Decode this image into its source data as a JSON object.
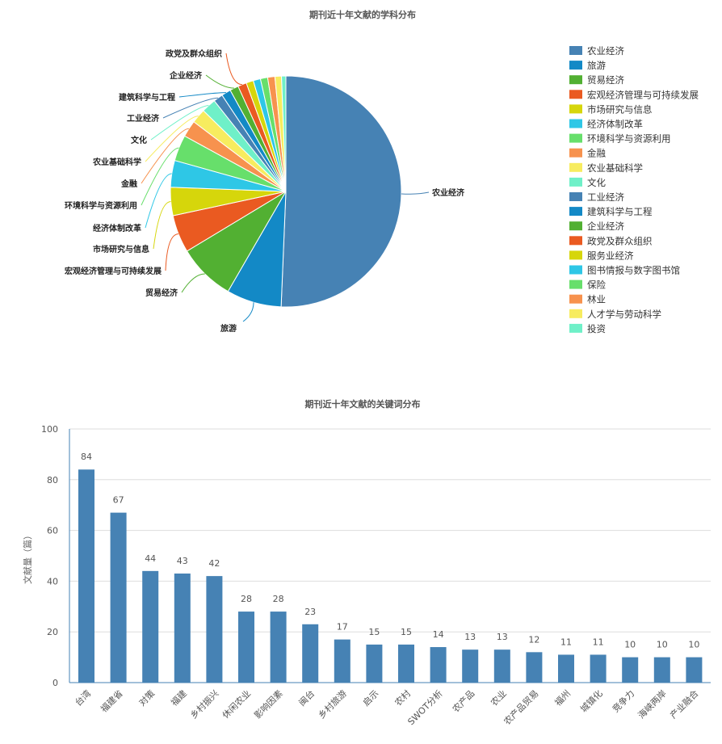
{
  "chart_data": [
    {
      "type": "pie",
      "title": "期刊近十年文献的学科分布",
      "categories": [
        "农业经济",
        "旅游",
        "贸易经济",
        "宏观经济管理与可持续发展",
        "市场研究与信息",
        "经济体制改革",
        "环境科学与资源利用",
        "金融",
        "农业基础科学",
        "文化",
        "工业经济",
        "建筑科学与工程",
        "企业经济",
        "政党及群众组织",
        "服务业经济",
        "图书情报与数字图书馆",
        "保险",
        "林业",
        "人才学与劳动科学",
        "投资"
      ],
      "values": [
        50.0,
        7.6,
        7.9,
        5.2,
        3.9,
        3.7,
        3.6,
        2.3,
        2.0,
        2.0,
        1.3,
        1.3,
        1.2,
        1.2,
        1.0,
        1.0,
        1.0,
        1.0,
        0.9,
        0.6
      ],
      "colors": [
        "#4682b4",
        "#1389c6",
        "#52b032",
        "#ea5a21",
        "#d6d60b",
        "#2ec7e6",
        "#67df6b",
        "#f7924e",
        "#f7ec5f",
        "#6ff0c8",
        "#4682b4",
        "#1389c6",
        "#52b032",
        "#ea5a21",
        "#d6d60b",
        "#2ec7e6",
        "#67df6b",
        "#f7924e",
        "#f7ec5f",
        "#6ff0c8"
      ],
      "labeled": [
        "农业经济",
        "旅游",
        "贸易经济",
        "宏观经济管理与可持续发展",
        "市场研究与信息",
        "经济体制改革",
        "环境科学与资源利用",
        "金融",
        "农业基础科学",
        "文化",
        "工业经济",
        "建筑科学与工程",
        "企业经济",
        "政党及群众组织"
      ],
      "legend_position": "right"
    },
    {
      "type": "bar",
      "title": "期刊近十年文献的关键词分布",
      "ylabel": "文献量（篇）",
      "xlabel": "",
      "categories": [
        "台湾",
        "福建省",
        "对策",
        "福建",
        "乡村振兴",
        "休闲农业",
        "影响因素",
        "闽台",
        "乡村旅游",
        "启示",
        "农村",
        "SWOT分析",
        "农产品",
        "农业",
        "农产品贸易",
        "福州",
        "城镇化",
        "竞争力",
        "海峡两岸",
        "产业融合"
      ],
      "values": [
        84,
        67,
        44,
        43,
        42,
        28,
        28,
        23,
        17,
        15,
        15,
        14,
        13,
        13,
        12,
        11,
        11,
        10,
        10,
        10
      ],
      "ylim": [
        0,
        100
      ],
      "yticks": [
        0,
        20,
        40,
        60,
        80,
        100
      ],
      "grid": true,
      "color": "#4682b4"
    }
  ]
}
